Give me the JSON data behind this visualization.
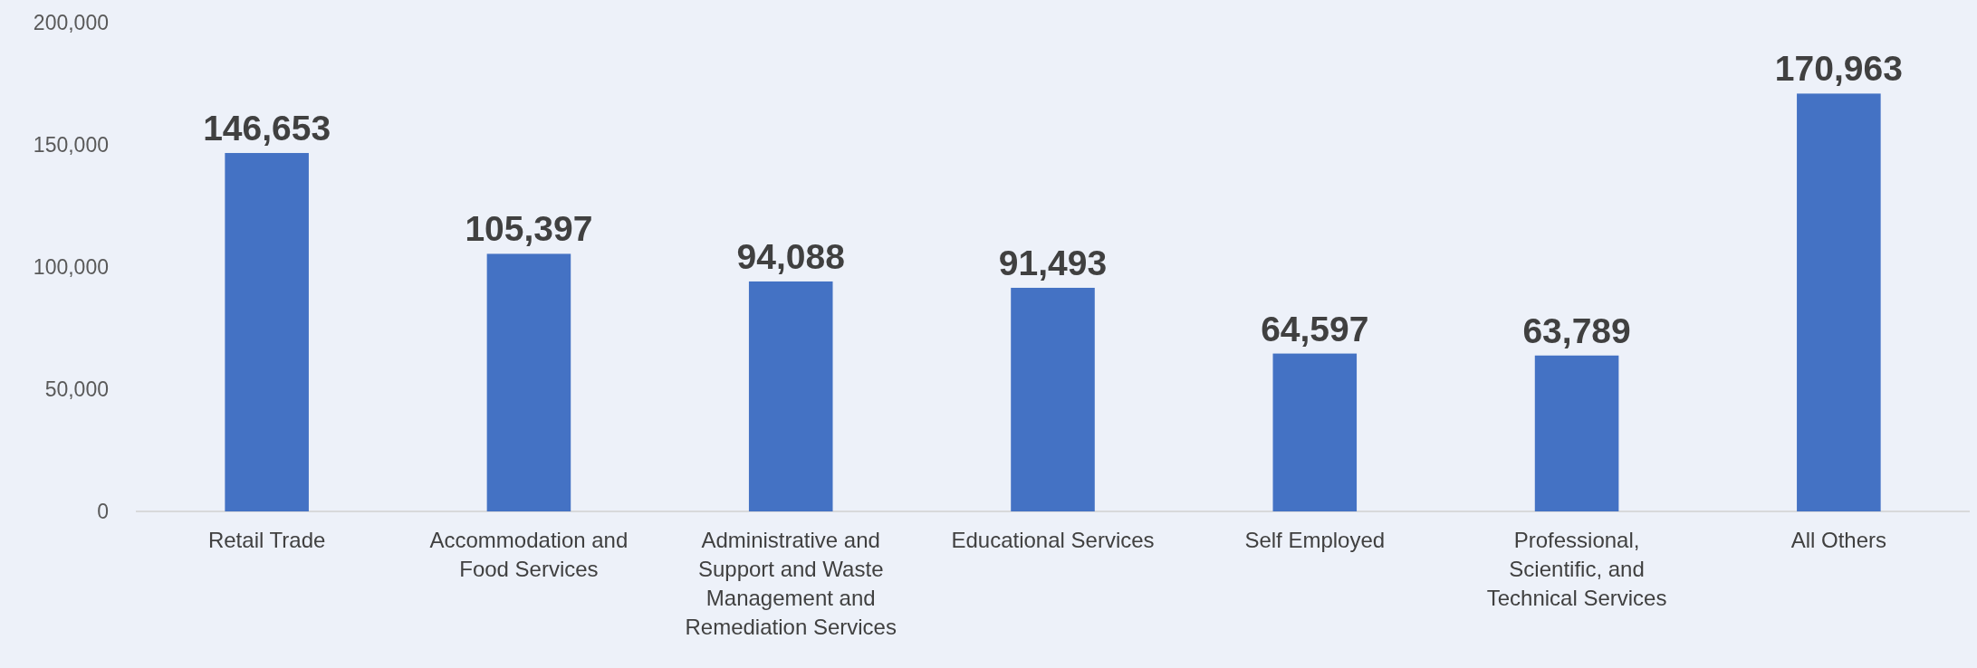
{
  "chart_data": {
    "type": "bar",
    "categories": [
      "Retail Trade",
      "Accommodation and Food Services",
      "Administrative and Support and Waste Management and Remediation Services",
      "Educational Services",
      "Self Employed",
      "Professional, Scientific, and Technical Services",
      "All Others"
    ],
    "values": [
      146653,
      105397,
      94088,
      91493,
      64597,
      63789,
      170963
    ],
    "color": "#4472c4",
    "ylim": [
      0,
      200000
    ],
    "yticks": [
      {
        "value": 0,
        "label": "0"
      },
      {
        "value": 50000,
        "label": "50,000"
      },
      {
        "value": 100000,
        "label": "100,000"
      },
      {
        "value": 150000,
        "label": "150,000"
      },
      {
        "value": 200000,
        "label": "200,000"
      }
    ],
    "value_labels": [
      "146,653",
      "105,397",
      "94,088",
      "91,493",
      "64,597",
      "63,789",
      "170,963"
    ],
    "grid": false
  }
}
